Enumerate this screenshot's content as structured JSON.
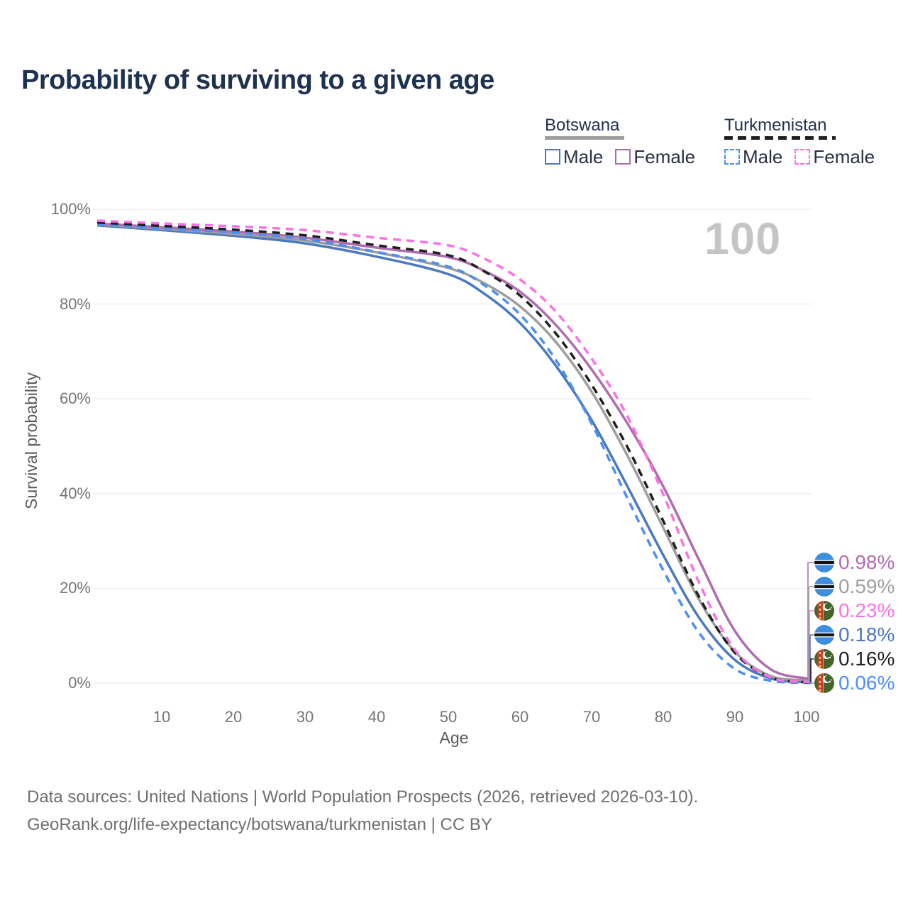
{
  "title": "Probability of surviving to a given age",
  "watermark": "100",
  "legend": {
    "groups": [
      {
        "title": "Botswana",
        "line_style": "solid",
        "line_color": "#9e9e9e",
        "items": [
          {
            "label": "Male",
            "color": "#4a79c0"
          },
          {
            "label": "Female",
            "color": "#b06cb0"
          }
        ]
      },
      {
        "title": "Turkmenistan",
        "line_style": "dashed",
        "line_color": "#1f1f1f",
        "items": [
          {
            "label": "Male",
            "color": "#4d8ef5"
          },
          {
            "label": "Female",
            "color": "#fb70e7"
          }
        ]
      }
    ]
  },
  "chart_data": {
    "type": "line",
    "title": "Probability of surviving to a given age",
    "xlabel": "Age",
    "ylabel": "Survival probability",
    "xlim": [
      1,
      101
    ],
    "ylim": [
      0,
      100
    ],
    "x_ticks": [
      10,
      20,
      30,
      40,
      50,
      60,
      70,
      80,
      90,
      100
    ],
    "y_ticks": [
      0,
      20,
      40,
      60,
      80,
      100
    ],
    "y_tick_suffix": "%",
    "grid": "horizontal",
    "legend_position": "top-right",
    "hovered_age": 100,
    "ages": [
      1,
      10,
      20,
      30,
      40,
      50,
      55,
      60,
      65,
      70,
      75,
      80,
      85,
      90,
      95,
      100
    ],
    "series": [
      {
        "name": "Botswana Male",
        "country": "Botswana",
        "sex": "Male",
        "color": "#4a79c0",
        "dash": "solid",
        "values": [
          96.6,
          95.6,
          94.4,
          92.8,
          90.0,
          86.3,
          82.2,
          76.0,
          67.0,
          55.5,
          41.5,
          27.0,
          13.8,
          4.9,
          1.0,
          0.18
        ]
      },
      {
        "name": "Botswana",
        "country": "Botswana",
        "sex": "Both",
        "color": "#9e9e9e",
        "dash": "solid",
        "values": [
          96.8,
          95.9,
          94.8,
          93.4,
          90.9,
          87.6,
          84.4,
          79.5,
          72.0,
          61.5,
          48.0,
          32.8,
          17.6,
          6.6,
          1.5,
          0.59
        ]
      },
      {
        "name": "Botswana Female",
        "country": "Botswana",
        "sex": "Female",
        "color": "#b06cb0",
        "dash": "solid",
        "values": [
          97.0,
          96.2,
          95.3,
          94.0,
          91.9,
          89.9,
          87.0,
          82.6,
          75.6,
          66.2,
          54.8,
          41.5,
          26.0,
          11.0,
          2.9,
          0.98
        ]
      },
      {
        "name": "Turkmenistan Male",
        "country": "Turkmenistan",
        "sex": "Male",
        "color": "#4d8ef5",
        "dash": "dashed",
        "values": [
          96.9,
          96.0,
          95.1,
          93.7,
          91.0,
          87.9,
          84.0,
          77.8,
          68.2,
          54.8,
          39.0,
          23.8,
          10.6,
          3.0,
          0.5,
          0.06
        ]
      },
      {
        "name": "Turkmenistan",
        "country": "Turkmenistan",
        "sex": "Both",
        "color": "#1f1f1f",
        "dash": "dashed",
        "values": [
          97.2,
          96.5,
          95.7,
          94.5,
          92.4,
          90.3,
          86.9,
          81.8,
          73.8,
          63.0,
          49.8,
          34.2,
          18.2,
          6.4,
          1.2,
          0.16
        ]
      },
      {
        "name": "Turkmenistan Female",
        "country": "Turkmenistan",
        "sex": "Female",
        "color": "#fb70e7",
        "dash": "dashed",
        "values": [
          97.6,
          97.0,
          96.4,
          95.6,
          94.0,
          92.4,
          89.6,
          85.2,
          78.4,
          68.5,
          56.3,
          39.8,
          21.2,
          7.0,
          1.2,
          0.23
        ]
      }
    ]
  },
  "end_labels": [
    {
      "value": "0.98%",
      "series": "Botswana Female",
      "flag": "botswana",
      "color": "#b06cb0",
      "v": 0.98
    },
    {
      "value": "0.59%",
      "series": "Botswana",
      "flag": "botswana",
      "color": "#9e9e9e",
      "v": 0.59
    },
    {
      "value": "0.23%",
      "series": "Turkmenistan Female",
      "flag": "turkmenistan",
      "color": "#fb70e7",
      "v": 0.23
    },
    {
      "value": "0.18%",
      "series": "Botswana Male",
      "flag": "botswana",
      "color": "#4a79c0",
      "v": 0.18
    },
    {
      "value": "0.16%",
      "series": "Turkmenistan",
      "flag": "turkmenistan",
      "color": "#1f1f1f",
      "v": 0.16
    },
    {
      "value": "0.06%",
      "series": "Turkmenistan Male",
      "flag": "turkmenistan",
      "color": "#4d8ef5",
      "v": 0.06
    }
  ],
  "footer": {
    "line1": "Data sources: United Nations | World Population Prospects (2026, retrieved 2026-03-10).",
    "line2": "GeoRank.org/life-expectancy/botswana/turkmenistan | CC BY"
  }
}
